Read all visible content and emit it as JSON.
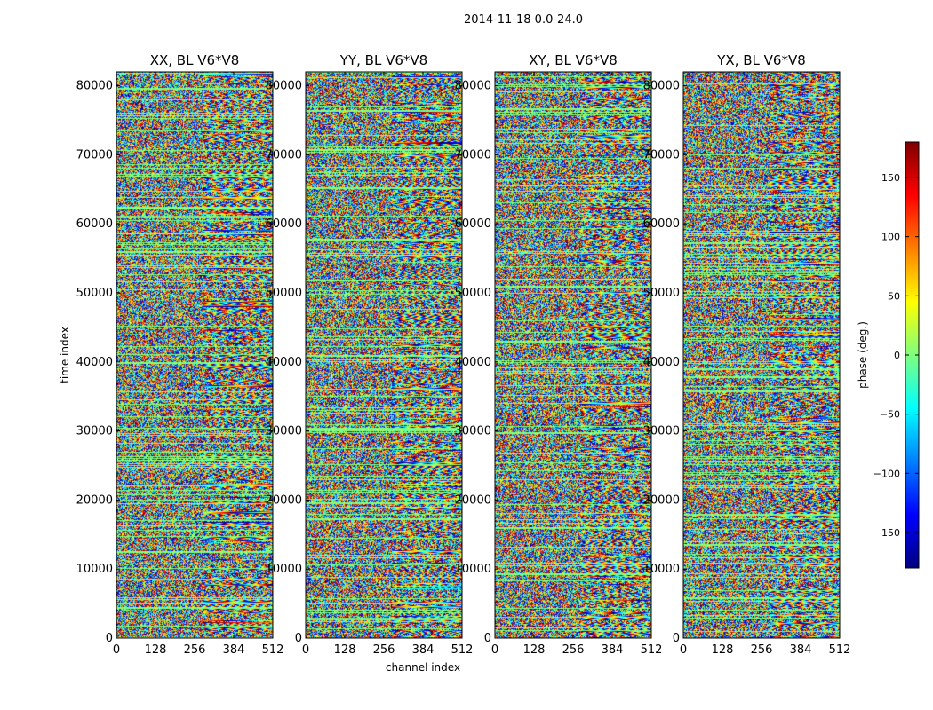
{
  "figure": {
    "title": "2014-11-18 0.0-24.0"
  },
  "chart_data": {
    "type": "heatmap",
    "title": "2014-11-18 0.0-24.0",
    "xlabel": "channel index",
    "ylabel": "time index",
    "xlim": [
      0,
      512
    ],
    "ylim": [
      0,
      82000
    ],
    "xticks": [
      "0",
      "128",
      "256",
      "384",
      "512"
    ],
    "yticks": [
      "0",
      "10000",
      "20000",
      "30000",
      "40000",
      "50000",
      "60000",
      "70000",
      "80000"
    ],
    "panels": [
      {
        "title": "XX, BL V6*V8"
      },
      {
        "title": "YY, BL V6*V8"
      },
      {
        "title": "XY, BL V6*V8"
      },
      {
        "title": "YX, BL V6*V8"
      }
    ],
    "colorbar": {
      "label": "phase (deg.)",
      "range": [
        -180,
        180
      ],
      "ticks": [
        "150",
        "100",
        "50",
        "0",
        "−50",
        "−100",
        "−150"
      ],
      "tick_values": [
        150,
        100,
        50,
        0,
        -50,
        -100,
        -150
      ],
      "colormap": "jet",
      "colors": [
        "#00007f",
        "#0000ff",
        "#007fff",
        "#00ffff",
        "#7fff7f",
        "#ffff00",
        "#ff7f00",
        "#ff0000",
        "#7f0000"
      ]
    }
  }
}
